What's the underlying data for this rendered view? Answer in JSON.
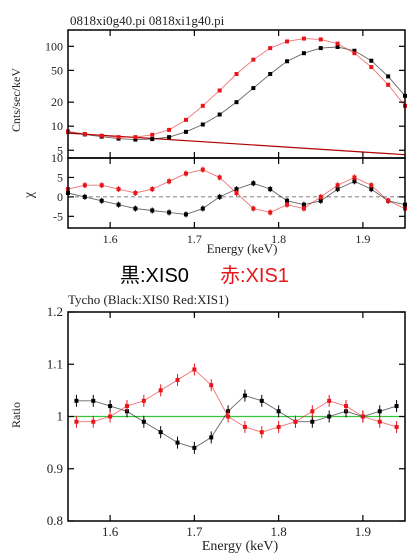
{
  "legend_overlay": {
    "black_label": "黒:XIS0",
    "red_label": "赤:XIS1",
    "black_color": "#000000",
    "red_color": "#e8161a"
  },
  "colors": {
    "black": "#000000",
    "red": "#e8161a",
    "model": "#b10000",
    "unity": "#39c339"
  },
  "chart_data": [
    {
      "type": "scatter",
      "title": "0818xi0g40.pi 0818xi1g40.pi",
      "ylabel": "Cnts/sec/keV",
      "ylog": true,
      "ylim": [
        4,
        160
      ],
      "yticks": [
        5,
        10,
        20,
        50,
        100
      ],
      "xlim": [
        1.55,
        1.95
      ],
      "series": [
        {
          "color": "black",
          "x": [
            1.55,
            1.57,
            1.59,
            1.61,
            1.63,
            1.65,
            1.67,
            1.69,
            1.71,
            1.73,
            1.75,
            1.77,
            1.79,
            1.81,
            1.83,
            1.85,
            1.87,
            1.89,
            1.91,
            1.93,
            1.95
          ],
          "y": [
            8.5,
            7.9,
            7.4,
            7,
            6.8,
            6.9,
            7.3,
            8.5,
            10.5,
            14,
            20,
            30,
            45,
            65,
            82,
            95,
            98,
            88,
            66,
            42,
            24
          ]
        },
        {
          "color": "red",
          "x": [
            1.55,
            1.57,
            1.59,
            1.61,
            1.63,
            1.65,
            1.67,
            1.69,
            1.71,
            1.73,
            1.75,
            1.77,
            1.79,
            1.81,
            1.83,
            1.85,
            1.87,
            1.89,
            1.91,
            1.93,
            1.95
          ],
          "y": [
            8.6,
            8.0,
            7.6,
            7.3,
            7.3,
            7.8,
            9,
            12,
            18,
            28,
            45,
            68,
            95,
            115,
            125,
            122,
            108,
            82,
            55,
            33,
            18
          ]
        }
      ],
      "continuum": {
        "x": [
          1.55,
          1.95
        ],
        "y": [
          8.2,
          4.4
        ]
      }
    },
    {
      "type": "scatter",
      "ylabel": "χ",
      "ylim": [
        -8,
        10
      ],
      "yticks": [
        -5,
        0,
        5,
        10
      ],
      "xlabel": "Energy (keV)",
      "xlim": [
        1.55,
        1.95
      ],
      "xticks": [
        1.6,
        1.7,
        1.8,
        1.9
      ],
      "series": [
        {
          "color": "black",
          "x": [
            1.55,
            1.57,
            1.59,
            1.61,
            1.63,
            1.65,
            1.67,
            1.69,
            1.71,
            1.73,
            1.75,
            1.77,
            1.79,
            1.81,
            1.83,
            1.85,
            1.87,
            1.89,
            1.91,
            1.93,
            1.95
          ],
          "y": [
            1,
            0,
            -1,
            -2,
            -3,
            -3.5,
            -4,
            -4.5,
            -3,
            0,
            2,
            3.5,
            2,
            -1,
            -2,
            -1,
            2,
            4,
            2,
            -1,
            -2
          ]
        },
        {
          "color": "red",
          "x": [
            1.55,
            1.57,
            1.59,
            1.61,
            1.63,
            1.65,
            1.67,
            1.69,
            1.71,
            1.73,
            1.75,
            1.77,
            1.79,
            1.81,
            1.83,
            1.85,
            1.87,
            1.89,
            1.91,
            1.93,
            1.95
          ],
          "y": [
            2,
            3,
            3,
            2,
            1,
            2,
            4,
            6,
            7,
            5,
            1,
            -3,
            -4,
            -2,
            -3,
            0,
            3,
            5,
            3,
            -1,
            -3
          ]
        }
      ]
    },
    {
      "type": "scatter",
      "title": "Tycho (Black:XIS0 Red:XIS1)",
      "ylabel": "Ratio",
      "xlabel": "Energy (keV)",
      "xlim": [
        1.55,
        1.95
      ],
      "ylim": [
        0.8,
        1.2
      ],
      "yticks": [
        0.8,
        0.9,
        1,
        1.1,
        1.2
      ],
      "xticks": [
        1.6,
        1.7,
        1.8,
        1.9
      ],
      "reference_line": 1,
      "series": [
        {
          "color": "black",
          "x": [
            1.56,
            1.58,
            1.6,
            1.62,
            1.64,
            1.66,
            1.68,
            1.7,
            1.72,
            1.74,
            1.76,
            1.78,
            1.8,
            1.82,
            1.84,
            1.86,
            1.88,
            1.9,
            1.92,
            1.94
          ],
          "y": [
            1.03,
            1.03,
            1.02,
            1.01,
            0.99,
            0.97,
            0.95,
            0.94,
            0.96,
            1.01,
            1.04,
            1.03,
            1.01,
            0.99,
            0.99,
            1.0,
            1.01,
            1.0,
            1.01,
            1.02
          ]
        },
        {
          "color": "red",
          "x": [
            1.56,
            1.58,
            1.6,
            1.62,
            1.64,
            1.66,
            1.68,
            1.7,
            1.72,
            1.74,
            1.76,
            1.78,
            1.8,
            1.82,
            1.84,
            1.86,
            1.88,
            1.9,
            1.92,
            1.94
          ],
          "y": [
            0.99,
            0.99,
            1.0,
            1.02,
            1.03,
            1.05,
            1.07,
            1.09,
            1.06,
            1.0,
            0.98,
            0.97,
            0.98,
            0.99,
            1.01,
            1.03,
            1.02,
            1.0,
            0.99,
            0.98
          ]
        }
      ]
    }
  ]
}
